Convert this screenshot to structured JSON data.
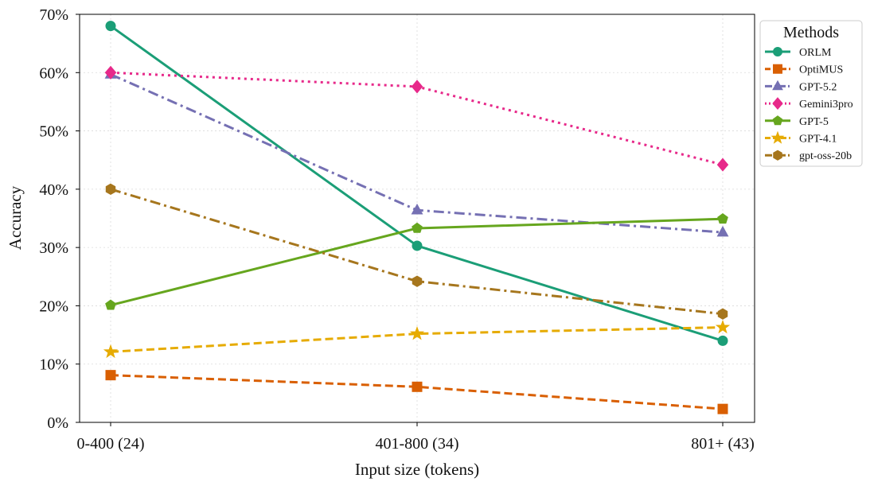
{
  "chart_data": {
    "type": "line",
    "xlabel": "Input size (tokens)",
    "ylabel": "Accuracy",
    "categories": [
      "0-400 (24)",
      "401-800 (34)",
      "801+ (43)"
    ],
    "ylim": [
      0,
      70
    ],
    "yticks": [
      "0%",
      "10%",
      "20%",
      "30%",
      "40%",
      "50%",
      "60%",
      "70%"
    ],
    "grid": true,
    "legend": {
      "title": "Methods",
      "placement": "outside-right-top"
    },
    "series": [
      {
        "name": "ORLM",
        "values": [
          68.0,
          30.3,
          14.0
        ],
        "color": "#1b9e77",
        "marker": "circle",
        "dash": "solid"
      },
      {
        "name": "OptiMUS",
        "values": [
          8.1,
          6.1,
          2.3
        ],
        "color": "#d95f02",
        "marker": "square",
        "dash": "dashed"
      },
      {
        "name": "GPT-5.2",
        "values": [
          59.7,
          36.4,
          32.6
        ],
        "color": "#7570b3",
        "marker": "triangle",
        "dash": "dashdot"
      },
      {
        "name": "Gemini3pro",
        "values": [
          60.0,
          57.6,
          44.2
        ],
        "color": "#e7298a",
        "marker": "diamond",
        "dash": "dotted"
      },
      {
        "name": "GPT-5",
        "values": [
          20.1,
          33.3,
          34.9
        ],
        "color": "#66a61e",
        "marker": "pentagon",
        "dash": "solid"
      },
      {
        "name": "GPT-4.1",
        "values": [
          12.1,
          15.2,
          16.3
        ],
        "color": "#e6ab02",
        "marker": "star",
        "dash": "dashed"
      },
      {
        "name": "gpt-oss-20b",
        "values": [
          40.0,
          24.2,
          18.6
        ],
        "color": "#a6761d",
        "marker": "hexagon",
        "dash": "dashdot"
      }
    ]
  }
}
